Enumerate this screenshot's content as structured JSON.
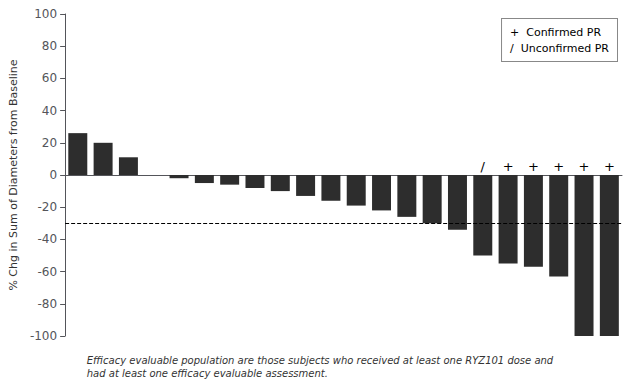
{
  "chart_data": {
    "type": "bar",
    "categories": [
      null,
      null,
      null,
      null,
      null,
      null,
      null,
      null,
      null,
      null,
      null,
      null,
      null,
      null,
      null,
      null,
      null,
      null,
      null,
      null,
      null,
      null
    ],
    "values": [
      26,
      20,
      11,
      0,
      -2,
      -5,
      -6,
      -8,
      -10,
      -13,
      -16,
      -19,
      -22,
      -26,
      -30,
      -34,
      -50,
      -55,
      -57,
      -63,
      -100,
      -100
    ],
    "color": "#2d2d2d",
    "ylabel": "% Chg in Sum of Diameters from Baseline",
    "ylim": [
      -100,
      100
    ],
    "yticks": [
      -100,
      -80,
      -60,
      -40,
      -20,
      0,
      20,
      40,
      60,
      80,
      100
    ],
    "tick_labels": "y",
    "grid": false,
    "reference_line": {
      "value": -30,
      "line_style": "dashed"
    },
    "bar_marks": [
      null,
      null,
      null,
      null,
      null,
      null,
      null,
      null,
      null,
      null,
      null,
      null,
      null,
      null,
      null,
      null,
      "/",
      "+",
      "+",
      "+",
      "+",
      "+"
    ],
    "legend": "upper right",
    "legend_entries": [
      {
        "symbol": "+",
        "label": "Confirmed PR"
      },
      {
        "symbol": "/",
        "label": "Unconfirmed PR"
      }
    ],
    "footnote": "Efficacy evaluable population are those subjects who received at least one RYZ101 dose and\nhad at least one efficacy evaluable assessment."
  }
}
